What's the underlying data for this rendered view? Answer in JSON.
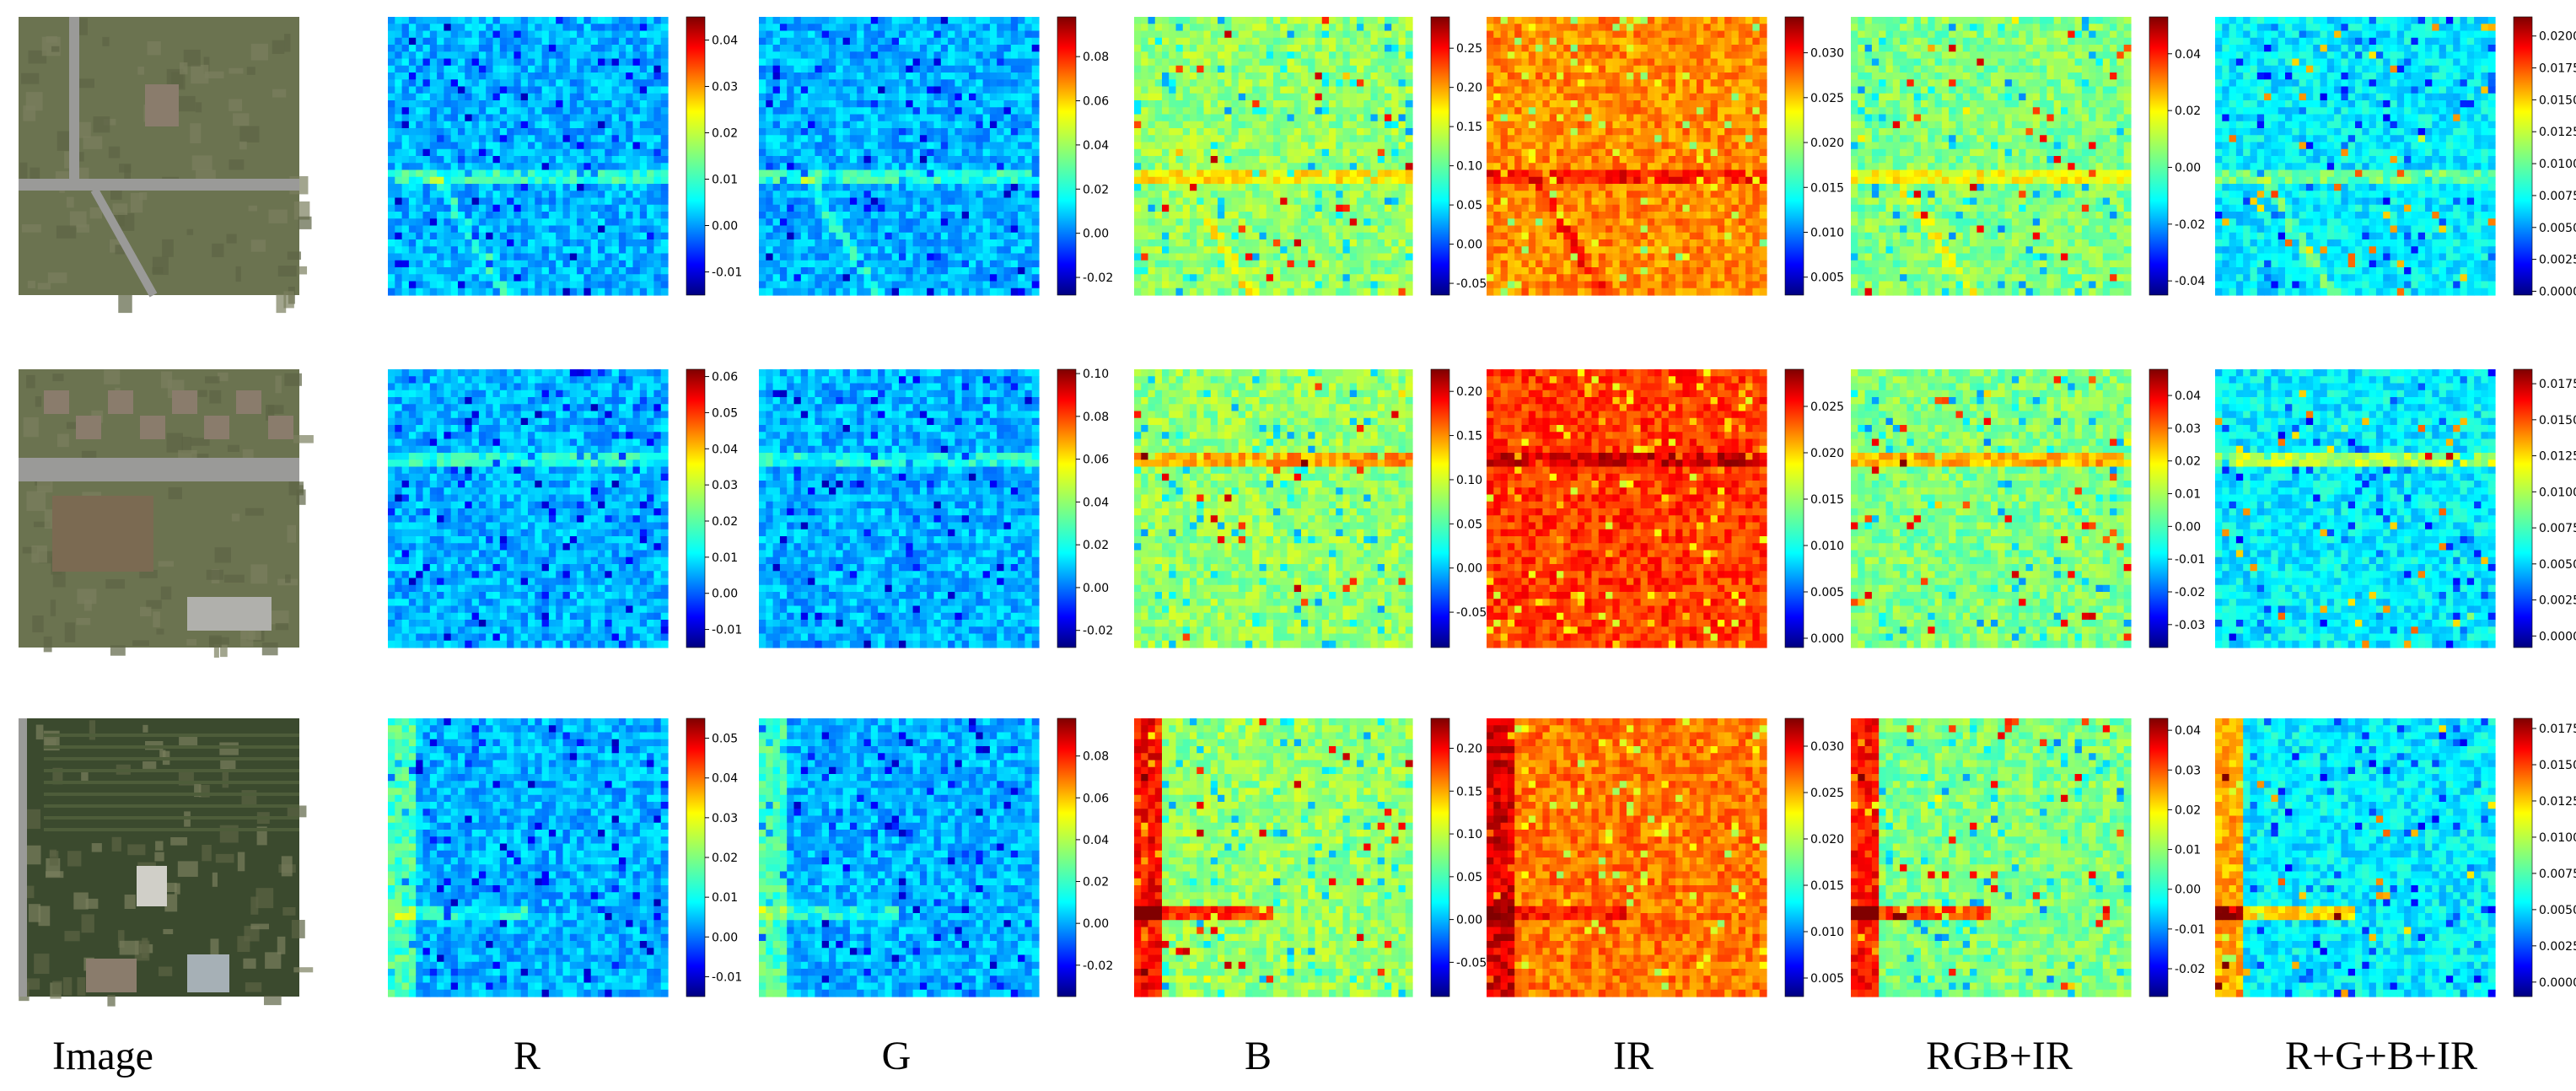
{
  "figure": {
    "columns": [
      "Image",
      "R",
      "G",
      "B",
      "IR",
      "RGB+IR",
      "R+G+B+IR"
    ],
    "rows": 3,
    "colormap": "jet",
    "colormap_stops": [
      "#00007f",
      "#0000ff",
      "#007fff",
      "#00ffff",
      "#7fff7f",
      "#ffff00",
      "#ff7f00",
      "#ff0000",
      "#7f0000"
    ],
    "photo_palette": {
      "field": "#6b7350",
      "road": "#9a9a98",
      "building": "#8a7c6c",
      "dark_field": "#3b4a2e"
    }
  },
  "chart_data": [
    {
      "type": "heatmap",
      "row": 1,
      "column": "R",
      "colormap": "jet",
      "range": [
        -0.015,
        0.045
      ],
      "colorbar_ticks": [
        "-0.01",
        "0.00",
        "0.01",
        "0.02",
        "0.03",
        "0.04"
      ]
    },
    {
      "type": "heatmap",
      "row": 1,
      "column": "G",
      "colormap": "jet",
      "range": [
        -0.028,
        0.098
      ],
      "colorbar_ticks": [
        "-0.02",
        "0.00",
        "0.02",
        "0.04",
        "0.06",
        "0.08"
      ]
    },
    {
      "type": "heatmap",
      "row": 1,
      "column": "B",
      "colormap": "jet",
      "range": [
        -0.065,
        0.29
      ],
      "colorbar_ticks": [
        "-0.05",
        "0.00",
        "0.05",
        "0.10",
        "0.15",
        "0.20",
        "0.25"
      ]
    },
    {
      "type": "heatmap",
      "row": 1,
      "column": "IR",
      "colormap": "jet",
      "range": [
        0.003,
        0.034
      ],
      "colorbar_ticks": [
        "0.005",
        "0.010",
        "0.015",
        "0.020",
        "0.025",
        "0.030"
      ]
    },
    {
      "type": "heatmap",
      "row": 1,
      "column": "RGB+IR",
      "colormap": "jet",
      "range": [
        -0.045,
        0.053
      ],
      "colorbar_ticks": [
        "-0.04",
        "-0.02",
        "0.00",
        "0.02",
        "0.04"
      ]
    },
    {
      "type": "heatmap",
      "row": 1,
      "column": "R+G+B+IR",
      "colormap": "jet",
      "range": [
        -0.0003,
        0.0215
      ],
      "colorbar_ticks": [
        "0.0000",
        "0.0025",
        "0.0050",
        "0.0075",
        "0.0100",
        "0.0125",
        "0.0150",
        "0.0175",
        "0.0200"
      ]
    },
    {
      "type": "heatmap",
      "row": 2,
      "column": "R",
      "colormap": "jet",
      "range": [
        -0.015,
        0.062
      ],
      "colorbar_ticks": [
        "-0.01",
        "0.00",
        "0.01",
        "0.02",
        "0.03",
        "0.04",
        "0.05",
        "0.06"
      ]
    },
    {
      "type": "heatmap",
      "row": 2,
      "column": "G",
      "colormap": "jet",
      "range": [
        -0.028,
        0.102
      ],
      "colorbar_ticks": [
        "-0.02",
        "0.00",
        "0.02",
        "0.04",
        "0.06",
        "0.08",
        "0.10"
      ]
    },
    {
      "type": "heatmap",
      "row": 2,
      "column": "B",
      "colormap": "jet",
      "range": [
        -0.09,
        0.225
      ],
      "colorbar_ticks": [
        "-0.05",
        "0.00",
        "0.05",
        "0.10",
        "0.15",
        "0.20"
      ]
    },
    {
      "type": "heatmap",
      "row": 2,
      "column": "IR",
      "colormap": "jet",
      "range": [
        -0.001,
        0.029
      ],
      "colorbar_ticks": [
        "0.000",
        "0.005",
        "0.010",
        "0.015",
        "0.020",
        "0.025"
      ]
    },
    {
      "type": "heatmap",
      "row": 2,
      "column": "RGB+IR",
      "colormap": "jet",
      "range": [
        -0.037,
        0.048
      ],
      "colorbar_ticks": [
        "-0.03",
        "-0.02",
        "-0.01",
        "0.00",
        "0.01",
        "0.02",
        "0.03",
        "0.04"
      ]
    },
    {
      "type": "heatmap",
      "row": 2,
      "column": "R+G+B+IR",
      "colormap": "jet",
      "range": [
        -0.0008,
        0.0185
      ],
      "colorbar_ticks": [
        "0.0000",
        "0.0025",
        "0.0050",
        "0.0075",
        "0.0100",
        "0.0125",
        "0.0150",
        "0.0175"
      ]
    },
    {
      "type": "heatmap",
      "row": 3,
      "column": "R",
      "colormap": "jet",
      "range": [
        -0.015,
        0.055
      ],
      "colorbar_ticks": [
        "-0.01",
        "0.00",
        "0.01",
        "0.02",
        "0.03",
        "0.04",
        "0.05"
      ]
    },
    {
      "type": "heatmap",
      "row": 3,
      "column": "G",
      "colormap": "jet",
      "range": [
        -0.035,
        0.098
      ],
      "colorbar_ticks": [
        "-0.02",
        "0.00",
        "0.02",
        "0.04",
        "0.06",
        "0.08"
      ]
    },
    {
      "type": "heatmap",
      "row": 3,
      "column": "B",
      "colormap": "jet",
      "range": [
        -0.09,
        0.235
      ],
      "colorbar_ticks": [
        "-0.05",
        "0.00",
        "0.05",
        "0.10",
        "0.15",
        "0.20"
      ]
    },
    {
      "type": "heatmap",
      "row": 3,
      "column": "IR",
      "colormap": "jet",
      "range": [
        0.003,
        0.033
      ],
      "colorbar_ticks": [
        "0.005",
        "0.010",
        "0.015",
        "0.020",
        "0.025",
        "0.030"
      ]
    },
    {
      "type": "heatmap",
      "row": 3,
      "column": "RGB+IR",
      "colormap": "jet",
      "range": [
        -0.027,
        0.043
      ],
      "colorbar_ticks": [
        "-0.02",
        "-0.01",
        "0.00",
        "0.01",
        "0.02",
        "0.03",
        "0.04"
      ]
    },
    {
      "type": "heatmap",
      "row": 3,
      "column": "R+G+B+IR",
      "colormap": "jet",
      "range": [
        -0.001,
        0.0182
      ],
      "colorbar_ticks": [
        "0.0000",
        "0.0025",
        "0.0050",
        "0.0075",
        "0.0100",
        "0.0125",
        "0.0150",
        "0.0175"
      ]
    }
  ]
}
